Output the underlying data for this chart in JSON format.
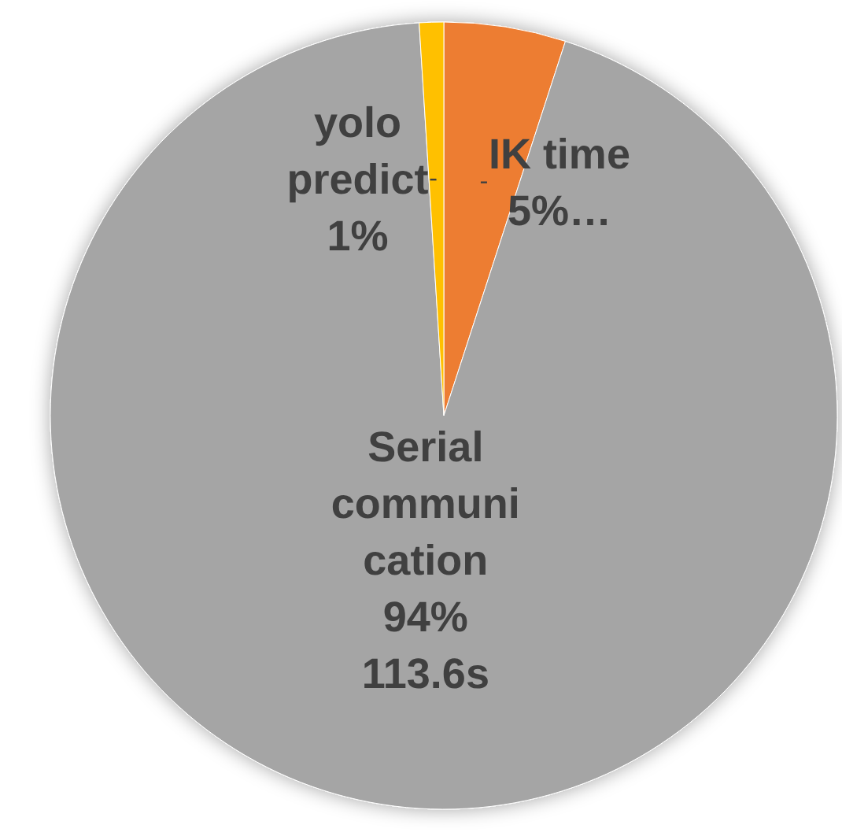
{
  "chart_data": {
    "type": "pie",
    "categories": [
      "IK time",
      "Serial communication",
      "yolo predict"
    ],
    "values": [
      5,
      94,
      1
    ],
    "colors": [
      "#ed7d31",
      "#a5a5a5",
      "#ffc000"
    ],
    "value_labels": [
      "5%…",
      "94%\n113.6s",
      "1%"
    ]
  }
}
